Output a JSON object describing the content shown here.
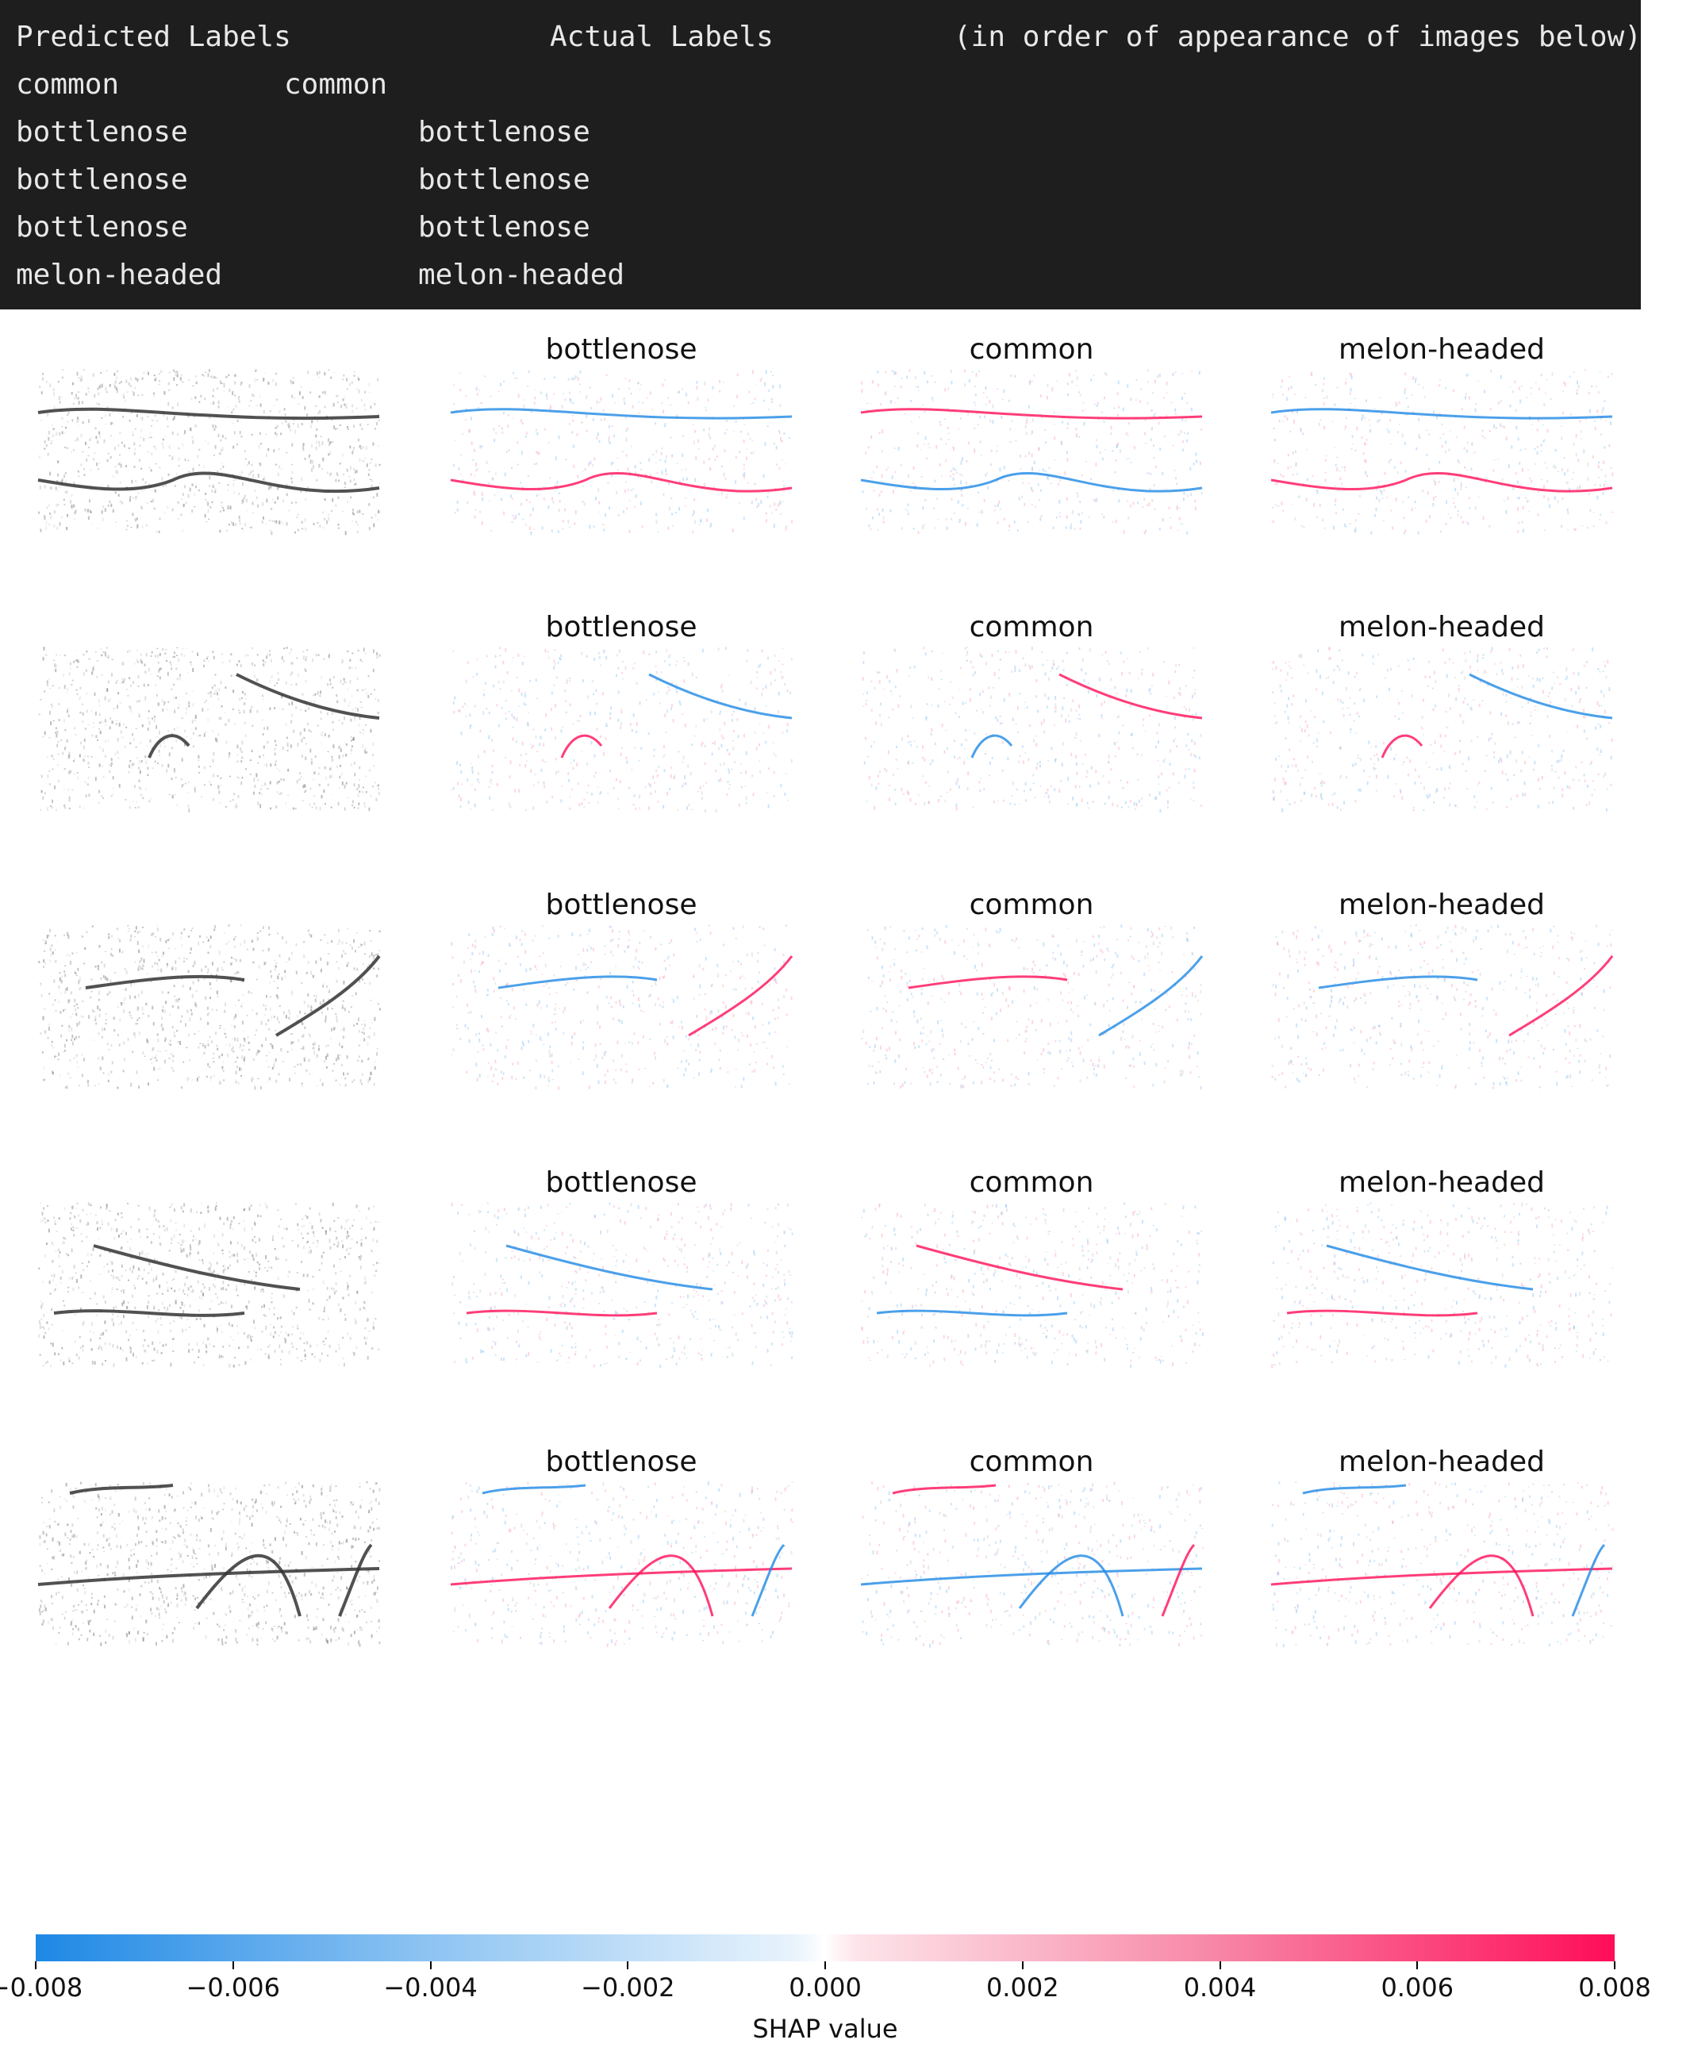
{
  "terminal": {
    "header_predicted": "Predicted Labels",
    "header_actual": "Actual Labels",
    "header_note": "(in order of appearance of images below)",
    "rows": [
      {
        "predicted": "common",
        "actual": "common"
      },
      {
        "predicted": "bottlenose",
        "actual": "bottlenose"
      },
      {
        "predicted": "bottlenose",
        "actual": "bottlenose"
      },
      {
        "predicted": "bottlenose",
        "actual": "bottlenose"
      },
      {
        "predicted": "melon-headed",
        "actual": "melon-headed"
      }
    ]
  },
  "grid": {
    "column_titles": [
      "bottlenose",
      "common",
      "melon-headed"
    ],
    "row_count": 5
  },
  "colorbar": {
    "label": "SHAP value",
    "min": -0.008,
    "max": 0.008,
    "ticks": [
      "−0.008",
      "−0.006",
      "−0.004",
      "−0.002",
      "0.000",
      "0.002",
      "0.004",
      "0.006",
      "0.008"
    ],
    "negative_color": "#1e88e5",
    "positive_color": "#ff0d57"
  }
}
